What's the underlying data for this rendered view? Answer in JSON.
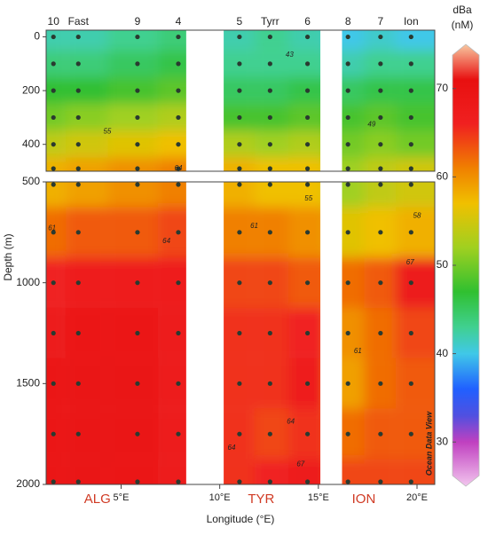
{
  "chart_data": {
    "type": "section",
    "stations": [
      "10",
      "Fast",
      "9",
      "4",
      "5",
      "Tyrr",
      "6",
      "8",
      "7",
      "Ion"
    ],
    "station_lon": [
      1.57,
      2.83,
      5.83,
      7.9,
      11.0,
      12.55,
      14.45,
      16.5,
      18.15,
      19.7
    ],
    "depths": [
      0,
      100,
      200,
      300,
      400,
      500,
      750,
      1000,
      1250,
      1500,
      1750,
      2000
    ],
    "series": [
      {
        "name": "10",
        "values": [
          42,
          44,
          47,
          50,
          54,
          58,
          62,
          66,
          68,
          69,
          69,
          69
        ]
      },
      {
        "name": "Fast",
        "values": [
          42,
          44,
          47,
          51,
          55,
          59,
          63,
          67,
          69,
          70,
          70,
          70
        ]
      },
      {
        "name": "9",
        "values": [
          43,
          45,
          48,
          52,
          56,
          60,
          63,
          67,
          69,
          70,
          70,
          69
        ]
      },
      {
        "name": "4",
        "values": [
          44,
          46,
          49,
          53,
          57,
          61,
          64,
          67,
          68,
          68,
          68,
          68
        ]
      },
      {
        "name": "5",
        "values": [
          42,
          43,
          45,
          48,
          53,
          58,
          61,
          64,
          65,
          65,
          65,
          65
        ]
      },
      {
        "name": "Tyrr",
        "values": [
          43,
          43,
          45,
          48,
          52,
          57,
          61,
          64,
          65,
          65,
          64,
          66
        ]
      },
      {
        "name": "6",
        "values": [
          42,
          43,
          46,
          49,
          53,
          57,
          60,
          63,
          66,
          67,
          65,
          68
        ]
      },
      {
        "name": "8",
        "values": [
          40,
          42,
          45,
          48,
          50,
          52,
          56,
          62,
          60,
          59,
          62,
          64
        ]
      },
      {
        "name": "7",
        "values": [
          41,
          43,
          46,
          49,
          51,
          54,
          57,
          63,
          62,
          62,
          63,
          64
        ]
      },
      {
        "name": "Ion",
        "values": [
          40,
          43,
          46,
          48,
          50,
          55,
          58,
          68,
          64,
          63,
          63,
          64
        ]
      }
    ],
    "gaps": [
      [
        8.3,
        10.2
      ],
      [
        15.1,
        16.2
      ]
    ],
    "xlim": [
      1.2,
      20.9
    ],
    "xticks": [
      {
        "value": 5,
        "label": "5°E"
      },
      {
        "value": 10,
        "label": "10°E"
      },
      {
        "value": 15,
        "label": "15°E"
      },
      {
        "value": 20,
        "label": "20°E"
      }
    ],
    "xlabel": "Longitude (°E)",
    "ylabel": "Depth (m)",
    "panels": [
      {
        "ylim": [
          -25,
          500
        ],
        "yticks": [
          0,
          200,
          400
        ]
      },
      {
        "ylim": [
          500,
          2000
        ],
        "yticks": [
          500,
          1000,
          1500,
          2000
        ]
      }
    ],
    "contour_labels": [
      {
        "value": 43,
        "lon": 13.54,
        "depth": 67
      },
      {
        "value": 55,
        "lon": 4.3,
        "depth": 353
      },
      {
        "value": 49,
        "lon": 17.7,
        "depth": 327
      },
      {
        "value": 64,
        "lon": 7.9,
        "depth": 490
      },
      {
        "value": 55,
        "lon": 14.5,
        "depth": 584
      },
      {
        "value": 58,
        "lon": 20.0,
        "depth": 668
      },
      {
        "value": 61,
        "lon": 1.5,
        "depth": 730
      },
      {
        "value": 61,
        "lon": 11.75,
        "depth": 720
      },
      {
        "value": 64,
        "lon": 7.3,
        "depth": 795
      },
      {
        "value": 67,
        "lon": 19.65,
        "depth": 900
      },
      {
        "value": 61,
        "lon": 17.0,
        "depth": 1340
      },
      {
        "value": 64,
        "lon": 13.6,
        "depth": 1690
      },
      {
        "value": 64,
        "lon": 10.6,
        "depth": 1820
      },
      {
        "value": 67,
        "lon": 14.1,
        "depth": 1900
      }
    ],
    "regions": [
      {
        "label": "ALG",
        "lon": 3.8
      },
      {
        "label": "TYR",
        "lon": 12.1
      },
      {
        "label": "ION",
        "lon": 17.3
      }
    ],
    "colorbar_title": [
      "dBa",
      "(nM)"
    ],
    "clim": [
      25,
      75
    ],
    "cticks": [
      30,
      40,
      50,
      60,
      70
    ],
    "colorscale": {
      "values": [
        25,
        30,
        33,
        36,
        40,
        43,
        47,
        52,
        57,
        61,
        66,
        71,
        75
      ],
      "colors": [
        "#f2c6ee",
        "#c040c0",
        "#5050e0",
        "#2060ff",
        "#40c8e8",
        "#40d090",
        "#30c030",
        "#a0d020",
        "#f0c000",
        "#f08000",
        "#f02020",
        "#e81010",
        "#f8c8a0"
      ]
    },
    "watermark": "Ocean Data View"
  }
}
